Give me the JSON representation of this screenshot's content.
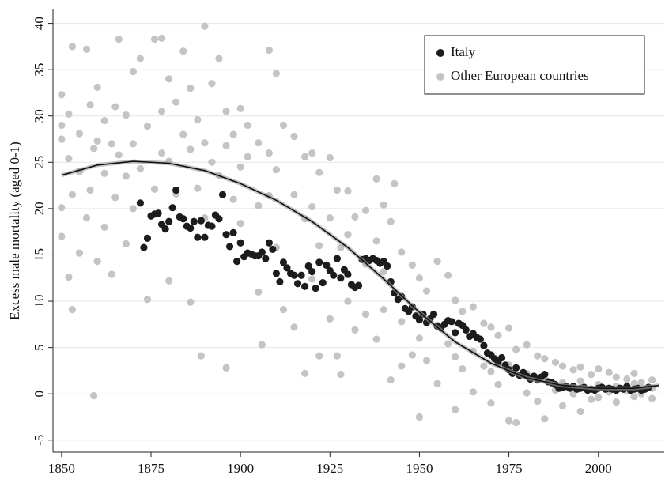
{
  "chart_data": {
    "type": "scatter",
    "y_label": "Excess male mortality (aged 0-1)",
    "xlim": [
      1847.6,
      2018.4
    ],
    "ylim": [
      -6.3,
      41.5
    ],
    "xticks": [
      1850,
      1875,
      1900,
      1925,
      1950,
      1975,
      2000
    ],
    "yticks": [
      -5,
      0,
      5,
      10,
      15,
      20,
      25,
      30,
      35,
      40
    ],
    "grid": true,
    "legend": "top-right",
    "series": [
      {
        "name": "Italy",
        "color": "#1c1c1c",
        "x": [
          1872,
          1873,
          1874,
          1875,
          1876,
          1877,
          1878,
          1879,
          1880,
          1881,
          1882,
          1883,
          1884,
          1885,
          1886,
          1887,
          1888,
          1889,
          1890,
          1891,
          1892,
          1893,
          1894,
          1895,
          1896,
          1897,
          1898,
          1899,
          1900,
          1901,
          1902,
          1903,
          1904,
          1905,
          1906,
          1907,
          1908,
          1909,
          1910,
          1911,
          1912,
          1913,
          1914,
          1915,
          1916,
          1917,
          1918,
          1919,
          1920,
          1921,
          1922,
          1923,
          1924,
          1925,
          1926,
          1927,
          1928,
          1929,
          1930,
          1931,
          1932,
          1933,
          1934,
          1935,
          1936,
          1937,
          1938,
          1939,
          1940,
          1941,
          1942,
          1943,
          1944,
          1945,
          1946,
          1947,
          1948,
          1949,
          1950,
          1951,
          1952,
          1953,
          1954,
          1955,
          1956,
          1957,
          1958,
          1959,
          1960,
          1961,
          1962,
          1963,
          1964,
          1965,
          1966,
          1967,
          1968,
          1969,
          1970,
          1971,
          1972,
          1973,
          1974,
          1975,
          1976,
          1977,
          1978,
          1979,
          1980,
          1981,
          1982,
          1983,
          1984,
          1985,
          1986,
          1987,
          1988,
          1989,
          1990,
          1991,
          1992,
          1993,
          1994,
          1995,
          1996,
          1997,
          1998,
          1999,
          2000,
          2001,
          2002,
          2003,
          2004,
          2005,
          2006,
          2007,
          2008,
          2009,
          2010,
          2011,
          2012,
          2013,
          2014
        ],
        "values": [
          20.6,
          15.8,
          16.8,
          19.2,
          19.4,
          19.5,
          18.3,
          17.8,
          18.6,
          20.1,
          22.0,
          19.1,
          18.9,
          18.1,
          17.9,
          18.6,
          16.9,
          18.7,
          16.9,
          18.2,
          18.1,
          19.3,
          18.9,
          21.5,
          17.2,
          15.9,
          17.4,
          14.3,
          16.3,
          14.8,
          15.2,
          15.1,
          14.9,
          14.9,
          15.3,
          14.6,
          16.3,
          15.6,
          13.0,
          12.1,
          14.2,
          13.6,
          13.0,
          12.8,
          11.9,
          12.8,
          11.6,
          13.8,
          13.2,
          11.4,
          14.2,
          12.0,
          13.9,
          13.3,
          12.8,
          14.6,
          12.5,
          13.4,
          12.9,
          11.8,
          11.5,
          11.7,
          14.5,
          14.6,
          14.4,
          14.6,
          14.4,
          14.1,
          14.3,
          13.8,
          12.1,
          10.9,
          10.2,
          10.5,
          9.2,
          8.9,
          9.4,
          8.4,
          8.0,
          8.6,
          7.7,
          8.1,
          8.6,
          7.3,
          7.1,
          7.5,
          7.9,
          7.8,
          6.6,
          7.6,
          7.4,
          6.9,
          6.2,
          6.5,
          6.1,
          5.9,
          5.2,
          4.4,
          4.2,
          3.8,
          3.4,
          3.9,
          3.1,
          2.6,
          2.2,
          2.8,
          2.0,
          2.3,
          1.9,
          1.6,
          1.9,
          1.5,
          1.8,
          2.1,
          1.3,
          1.2,
          1.0,
          0.6,
          0.7,
          0.8,
          0.6,
          0.8,
          0.5,
          0.6,
          0.7,
          0.4,
          0.5,
          0.4,
          0.6,
          0.7,
          0.5,
          0.6,
          0.5,
          0.4,
          0.6,
          0.5,
          0.8,
          0.4,
          0.5,
          0.6,
          0.4,
          0.5,
          0.7
        ]
      },
      {
        "name": "Other European countries",
        "color": "#c4c4c4",
        "x": [
          1850,
          1850,
          1850,
          1850,
          1850,
          1852,
          1852,
          1852,
          1853,
          1853,
          1853,
          1855,
          1855,
          1855,
          1857,
          1857,
          1858,
          1858,
          1859,
          1859,
          1860,
          1860,
          1860,
          1862,
          1862,
          1862,
          1864,
          1864,
          1865,
          1865,
          1866,
          1866,
          1868,
          1868,
          1868,
          1870,
          1870,
          1870,
          1872,
          1872,
          1874,
          1874,
          1876,
          1876,
          1878,
          1878,
          1878,
          1880,
          1880,
          1880,
          1882,
          1882,
          1884,
          1884,
          1886,
          1886,
          1886,
          1888,
          1888,
          1889,
          1890,
          1890,
          1890,
          1892,
          1892,
          1894,
          1894,
          1896,
          1896,
          1896,
          1898,
          1898,
          1900,
          1900,
          1900,
          1902,
          1902,
          1905,
          1905,
          1905,
          1906,
          1908,
          1908,
          1908,
          1910,
          1910,
          1910,
          1912,
          1912,
          1915,
          1915,
          1915,
          1918,
          1918,
          1918,
          1920,
          1920,
          1920,
          1922,
          1922,
          1922,
          1925,
          1925,
          1925,
          1927,
          1927,
          1928,
          1928,
          1930,
          1930,
          1930,
          1932,
          1932,
          1935,
          1935,
          1935,
          1938,
          1938,
          1938,
          1940,
          1940,
          1940,
          1942,
          1942,
          1943,
          1945,
          1945,
          1945,
          1948,
          1948,
          1950,
          1950,
          1950,
          1952,
          1952,
          1955,
          1955,
          1955,
          1958,
          1958,
          1960,
          1960,
          1960,
          1962,
          1962,
          1965,
          1965,
          1965,
          1968,
          1968,
          1970,
          1970,
          1970,
          1972,
          1972,
          1975,
          1975,
          1975,
          1977,
          1977,
          1980,
          1980,
          1980,
          1983,
          1983,
          1985,
          1985,
          1985,
          1988,
          1988,
          1990,
          1990,
          1990,
          1993,
          1993,
          1995,
          1995,
          1995,
          1998,
          1998,
          2000,
          2000,
          2000,
          2003,
          2003,
          2005,
          2005,
          2005,
          2008,
          2008,
          2010,
          2010,
          2010,
          2012,
          2012,
          2015,
          2015,
          2015
        ],
        "values": [
          32.3,
          27.5,
          20.1,
          17.0,
          29.0,
          12.6,
          25.4,
          30.2,
          37.5,
          9.1,
          21.5,
          15.2,
          28.1,
          24.0,
          37.2,
          19.0,
          22.0,
          31.2,
          -0.2,
          26.5,
          27.3,
          14.3,
          33.1,
          23.8,
          29.5,
          18.0,
          12.9,
          27.0,
          31.0,
          21.2,
          38.3,
          25.8,
          23.5,
          30.1,
          16.2,
          20.0,
          34.8,
          27.0,
          36.2,
          24.3,
          10.2,
          28.9,
          38.3,
          22.1,
          38.4,
          30.5,
          26.0,
          34.0,
          25.1,
          12.2,
          31.5,
          21.6,
          37.0,
          28.0,
          9.9,
          26.4,
          33.0,
          29.6,
          22.2,
          4.1,
          39.7,
          27.1,
          19.0,
          33.5,
          25.0,
          36.2,
          23.6,
          2.8,
          30.5,
          26.8,
          28.0,
          21.0,
          30.8,
          24.5,
          18.4,
          29.0,
          25.6,
          27.1,
          20.3,
          11.0,
          5.3,
          37.1,
          26.0,
          21.4,
          34.6,
          24.2,
          15.8,
          29.0,
          9.1,
          27.8,
          21.5,
          7.2,
          2.2,
          25.6,
          18.9,
          26.0,
          20.2,
          12.4,
          4.1,
          23.9,
          16.0,
          25.5,
          19.0,
          8.1,
          4.1,
          22.0,
          2.1,
          15.8,
          21.9,
          17.2,
          10.0,
          19.1,
          6.9,
          19.8,
          14.0,
          8.6,
          23.2,
          16.5,
          5.9,
          20.4,
          13.2,
          9.1,
          1.5,
          18.6,
          22.7,
          15.3,
          7.8,
          3.0,
          13.9,
          4.2,
          12.5,
          6.0,
          -2.5,
          11.1,
          3.6,
          14.3,
          7.4,
          1.1,
          12.8,
          5.4,
          10.1,
          4.0,
          -1.7,
          8.9,
          2.7,
          9.4,
          4.6,
          0.2,
          7.6,
          3.0,
          7.2,
          2.4,
          -1.0,
          6.3,
          1.0,
          7.1,
          3.1,
          -2.9,
          -3.1,
          4.8,
          5.3,
          2.2,
          0.1,
          4.1,
          -0.8,
          3.8,
          1.5,
          -2.7,
          3.4,
          0.4,
          3.0,
          1.2,
          -1.3,
          2.6,
          0.0,
          2.9,
          1.4,
          -1.9,
          2.1,
          -0.6,
          2.7,
          1.0,
          -0.4,
          2.3,
          0.2,
          1.8,
          -0.9,
          0.8,
          1.6,
          0.3,
          2.2,
          -0.3,
          1.1,
          1.2,
          0.0,
          1.5,
          -0.5,
          0.6
        ]
      }
    ],
    "fit_line": {
      "color": "#111111",
      "x": [
        1850,
        1860,
        1870,
        1880,
        1890,
        1900,
        1910,
        1920,
        1930,
        1940,
        1950,
        1960,
        1970,
        1980,
        1990,
        2000,
        2010,
        2017
      ],
      "values": [
        23.6,
        24.7,
        25.1,
        24.9,
        24.1,
        22.7,
        20.9,
        18.6,
        15.8,
        12.4,
        8.8,
        5.6,
        3.3,
        1.7,
        0.9,
        0.6,
        0.6,
        0.9
      ]
    }
  }
}
